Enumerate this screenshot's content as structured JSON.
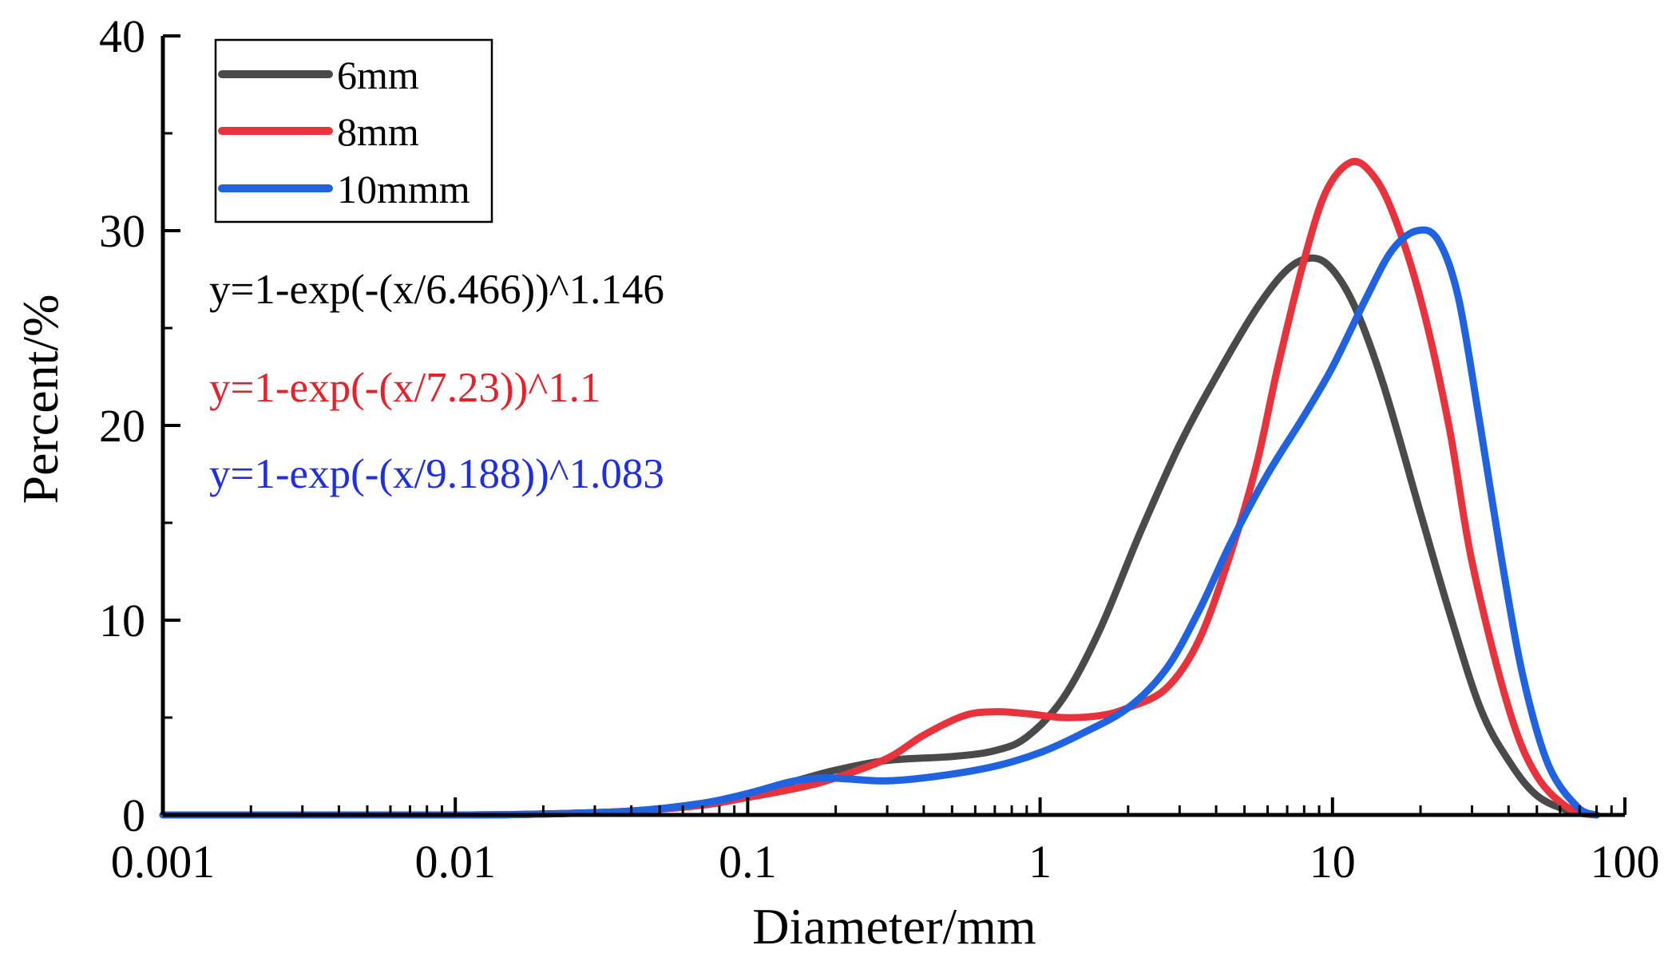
{
  "chart_data": {
    "type": "line",
    "title": "",
    "xlabel": "Diameter/mm",
    "ylabel": "Percent/%",
    "xscale": "log",
    "xlim": [
      0.001,
      100
    ],
    "ylim": [
      0,
      40
    ],
    "x_ticks": [
      {
        "value": 0.001,
        "label": "0.001"
      },
      {
        "value": 0.01,
        "label": "0.01"
      },
      {
        "value": 0.1,
        "label": "0.1"
      },
      {
        "value": 1,
        "label": "1"
      },
      {
        "value": 10,
        "label": "10"
      },
      {
        "value": 100,
        "label": "100"
      }
    ],
    "y_ticks": [
      {
        "value": 0,
        "label": "0"
      },
      {
        "value": 10,
        "label": "10"
      },
      {
        "value": 20,
        "label": "20"
      },
      {
        "value": 30,
        "label": "30"
      },
      {
        "value": 40,
        "label": "40"
      }
    ],
    "legend_position": "top-left",
    "series": [
      {
        "name": "6mm",
        "color": "#4a4a4a",
        "points": [
          [
            0.001,
            0
          ],
          [
            0.01,
            0
          ],
          [
            0.02,
            0.05
          ],
          [
            0.04,
            0.2
          ],
          [
            0.07,
            0.6
          ],
          [
            0.1,
            1.1
          ],
          [
            0.15,
            1.8
          ],
          [
            0.2,
            2.3
          ],
          [
            0.3,
            2.8
          ],
          [
            0.5,
            3.0
          ],
          [
            0.7,
            3.3
          ],
          [
            0.9,
            4.0
          ],
          [
            1.2,
            6.0
          ],
          [
            1.6,
            9.5
          ],
          [
            2.2,
            14.5
          ],
          [
            3.0,
            19.0
          ],
          [
            4.0,
            22.5
          ],
          [
            5.5,
            26.0
          ],
          [
            7.0,
            28.0
          ],
          [
            8.5,
            28.6
          ],
          [
            10.0,
            28.0
          ],
          [
            12.0,
            26.0
          ],
          [
            15.0,
            22.0
          ],
          [
            20.0,
            15.5
          ],
          [
            25.0,
            10.5
          ],
          [
            32.0,
            5.5
          ],
          [
            40.0,
            2.8
          ],
          [
            50.0,
            1.0
          ],
          [
            65.0,
            0.2
          ],
          [
            80.0,
            0
          ]
        ]
      },
      {
        "name": "8mm",
        "color": "#e8333c",
        "points": [
          [
            0.001,
            0
          ],
          [
            0.01,
            0
          ],
          [
            0.02,
            0.05
          ],
          [
            0.04,
            0.2
          ],
          [
            0.07,
            0.5
          ],
          [
            0.1,
            0.9
          ],
          [
            0.15,
            1.4
          ],
          [
            0.2,
            1.9
          ],
          [
            0.3,
            2.9
          ],
          [
            0.4,
            4.1
          ],
          [
            0.55,
            5.1
          ],
          [
            0.7,
            5.3
          ],
          [
            0.9,
            5.2
          ],
          [
            1.2,
            5.0
          ],
          [
            1.6,
            5.1
          ],
          [
            2.0,
            5.5
          ],
          [
            2.7,
            6.5
          ],
          [
            3.5,
            9.0
          ],
          [
            4.5,
            13.5
          ],
          [
            5.5,
            18.0
          ],
          [
            6.5,
            23.0
          ],
          [
            8.0,
            28.5
          ],
          [
            9.5,
            32.0
          ],
          [
            11.5,
            33.5
          ],
          [
            13.5,
            33.0
          ],
          [
            16.0,
            31.0
          ],
          [
            20.0,
            26.5
          ],
          [
            25.0,
            20.0
          ],
          [
            30.0,
            13.0
          ],
          [
            40.0,
            5.5
          ],
          [
            50.0,
            2.0
          ],
          [
            65.0,
            0.3
          ],
          [
            80.0,
            0
          ]
        ]
      },
      {
        "name": "10mmm",
        "color": "#1f63e0",
        "points": [
          [
            0.001,
            0
          ],
          [
            0.01,
            0
          ],
          [
            0.02,
            0.05
          ],
          [
            0.04,
            0.2
          ],
          [
            0.07,
            0.6
          ],
          [
            0.1,
            1.1
          ],
          [
            0.14,
            1.7
          ],
          [
            0.18,
            1.9
          ],
          [
            0.22,
            1.85
          ],
          [
            0.3,
            1.75
          ],
          [
            0.45,
            2.0
          ],
          [
            0.7,
            2.5
          ],
          [
            1.0,
            3.2
          ],
          [
            1.4,
            4.2
          ],
          [
            2.0,
            5.5
          ],
          [
            2.7,
            7.5
          ],
          [
            3.5,
            10.5
          ],
          [
            4.5,
            14.0
          ],
          [
            6.0,
            17.5
          ],
          [
            8.0,
            20.5
          ],
          [
            10.0,
            23.0
          ],
          [
            13.0,
            26.5
          ],
          [
            16.0,
            29.0
          ],
          [
            19.5,
            30.0
          ],
          [
            23.0,
            29.5
          ],
          [
            27.0,
            26.5
          ],
          [
            32.0,
            20.0
          ],
          [
            38.0,
            13.0
          ],
          [
            45.0,
            7.0
          ],
          [
            55.0,
            2.5
          ],
          [
            70.0,
            0.3
          ],
          [
            80.0,
            0
          ]
        ]
      }
    ],
    "equations": [
      {
        "text": "y=1-exp(-(x/6.466))^1.146",
        "color": "#000000"
      },
      {
        "text": "y=1-exp(-(x/7.23))^1.1",
        "color": "#e8202a"
      },
      {
        "text": "y=1-exp(-(x/9.188))^1.083",
        "color": "#1c2ee6"
      }
    ]
  }
}
